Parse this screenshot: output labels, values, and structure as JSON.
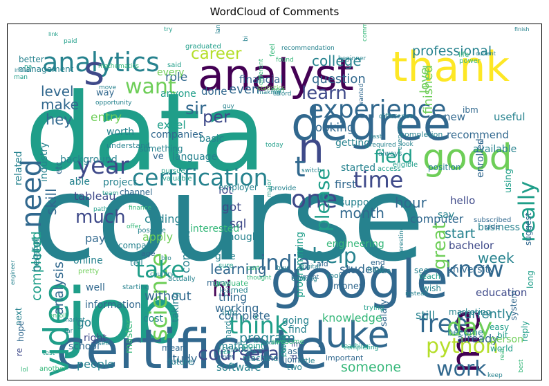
{
  "title": "WordCloud of Comments",
  "palette": [
    "#440154",
    "#482878",
    "#3e4989",
    "#31688e",
    "#26828e",
    "#1f9e89",
    "#35b779",
    "#6ece58",
    "#b5de2b",
    "#fde725"
  ],
  "words": [
    {
      "text": "course",
      "c": 4
    },
    {
      "text": "data",
      "c": 5
    },
    {
      "text": "job",
      "c": 5
    },
    {
      "text": "certificate",
      "c": 3
    },
    {
      "text": "google",
      "c": 3
    },
    {
      "text": "degree",
      "c": 3
    },
    {
      "text": "analyst",
      "c": 0
    },
    {
      "text": "thank",
      "c": 9
    },
    {
      "text": "video",
      "c": 5
    },
    {
      "text": "luke",
      "c": 3
    },
    {
      "text": "n",
      "c": 2
    },
    {
      "text": "certification",
      "c": 4
    },
    {
      "text": "experience",
      "c": 3
    },
    {
      "text": "analytics",
      "c": 4
    },
    {
      "text": "s",
      "c": 2
    },
    {
      "text": "good",
      "c": 7
    },
    {
      "text": "t",
      "c": 3
    },
    {
      "text": "want",
      "c": 7
    },
    {
      "text": "india",
      "c": 3
    },
    {
      "text": "science",
      "c": 7
    },
    {
      "text": "free",
      "c": 3
    },
    {
      "text": "me",
      "c": 0
    },
    {
      "text": "day",
      "c": 7
    },
    {
      "text": "python",
      "c": 8
    },
    {
      "text": "work",
      "c": 3
    },
    {
      "text": "help",
      "c": 4
    },
    {
      "text": "know",
      "c": 3
    },
    {
      "text": "one",
      "c": 2
    },
    {
      "text": "think",
      "c": 5
    },
    {
      "text": "take",
      "c": 5
    },
    {
      "text": "hi",
      "c": 0
    },
    {
      "text": "need",
      "c": 3
    },
    {
      "text": "year",
      "c": 2
    },
    {
      "text": "time",
      "c": 2
    },
    {
      "text": "much",
      "c": 2
    },
    {
      "text": "please",
      "c": 5
    },
    {
      "text": "career",
      "c": 8
    },
    {
      "text": "per",
      "c": 2
    },
    {
      "text": "really",
      "c": 5
    },
    {
      "text": "great",
      "c": 7
    },
    {
      "text": "coursera",
      "c": 2
    },
    {
      "text": "learn",
      "c": 2
    },
    {
      "text": "level",
      "c": 3
    },
    {
      "text": "make",
      "c": 3
    },
    {
      "text": "field",
      "c": 5
    },
    {
      "text": "week",
      "c": 4
    },
    {
      "text": "college",
      "c": 4
    },
    {
      "text": "professional",
      "c": 4
    },
    {
      "text": "learning",
      "c": 3
    },
    {
      "text": "hour",
      "c": 3
    },
    {
      "text": "month",
      "c": 3
    },
    {
      "text": "currently",
      "c": 4
    },
    {
      "text": "sir",
      "c": 3
    },
    {
      "text": "hey",
      "c": 3
    },
    {
      "text": "question",
      "c": 3
    },
    {
      "text": "even",
      "c": 3
    },
    {
      "text": "program",
      "c": 4
    },
    {
      "text": "analysis",
      "c": 3
    },
    {
      "text": "skill",
      "c": 3
    },
    {
      "text": "student",
      "c": 3
    },
    {
      "text": "someone",
      "c": 6
    },
    {
      "text": "knowledge",
      "c": 6
    },
    {
      "text": "looking",
      "c": 3
    },
    {
      "text": "sql",
      "c": 2
    },
    {
      "text": "got",
      "c": 2
    },
    {
      "text": "lot",
      "c": 2
    },
    {
      "text": "still",
      "c": 4
    },
    {
      "text": "people",
      "c": 4
    },
    {
      "text": "without",
      "c": 3
    },
    {
      "text": "working",
      "c": 3
    },
    {
      "text": "first",
      "c": 3
    },
    {
      "text": "finished",
      "c": 7
    },
    {
      "text": "love",
      "c": 7
    },
    {
      "text": "already",
      "c": 3
    },
    {
      "text": "start",
      "c": 4
    },
    {
      "text": "go",
      "c": 4
    },
    {
      "text": "pay",
      "c": 3
    },
    {
      "text": "computer",
      "c": 3
    },
    {
      "text": "cert",
      "c": 5
    },
    {
      "text": "completed",
      "c": 5
    },
    {
      "text": "thing",
      "c": 3
    },
    {
      "text": "complete",
      "c": 3
    },
    {
      "text": "tableau",
      "c": 2
    },
    {
      "text": "role",
      "c": 3
    },
    {
      "text": "available",
      "c": 4
    },
    {
      "text": "new",
      "c": 3
    },
    {
      "text": "useful",
      "c": 4
    },
    {
      "text": "recommend",
      "c": 3
    },
    {
      "text": "excel",
      "c": 5
    },
    {
      "text": "companies",
      "c": 3
    },
    {
      "text": "industry",
      "c": 4
    },
    {
      "text": "entry",
      "c": 7
    },
    {
      "text": "coding",
      "c": 4
    },
    {
      "text": "apply",
      "c": 7
    },
    {
      "text": "online",
      "c": 4
    },
    {
      "text": "content",
      "c": 4
    },
    {
      "text": "programming",
      "c": 5
    },
    {
      "text": "engineering",
      "c": 6
    },
    {
      "text": "bachelor",
      "c": 2
    },
    {
      "text": "education",
      "c": 2
    },
    {
      "text": "university",
      "c": 3
    },
    {
      "text": "business",
      "c": 4
    },
    {
      "text": "hello",
      "c": 2
    },
    {
      "text": "project",
      "c": 4
    },
    {
      "text": "language",
      "c": 4
    },
    {
      "text": "worth",
      "c": 4
    },
    {
      "text": "anyone",
      "c": 5
    },
    {
      "text": "every",
      "c": 7
    },
    {
      "text": "done",
      "c": 3
    },
    {
      "text": "financial",
      "c": 3
    },
    {
      "text": "started",
      "c": 4
    },
    {
      "text": "support",
      "c": 4
    },
    {
      "text": "getting",
      "c": 4
    },
    {
      "text": "basic",
      "c": 4
    },
    {
      "text": "say",
      "c": 4
    },
    {
      "text": "enough",
      "c": 4
    },
    {
      "text": "going",
      "c": 4
    },
    {
      "text": "find",
      "c": 4
    },
    {
      "text": "money",
      "c": 3
    },
    {
      "text": "become",
      "c": 4
    },
    {
      "text": "person",
      "c": 7
    },
    {
      "text": "school",
      "c": 3
    },
    {
      "text": "study",
      "c": 3
    },
    {
      "text": "master",
      "c": 6
    },
    {
      "text": "math",
      "c": 4
    },
    {
      "text": "software",
      "c": 4
    },
    {
      "text": "right",
      "c": 2
    },
    {
      "text": "well",
      "c": 3
    },
    {
      "text": "information",
      "c": 3
    },
    {
      "text": "cost",
      "c": 4
    },
    {
      "text": "taking",
      "c": 4
    },
    {
      "text": "give",
      "c": 4
    },
    {
      "text": "interested",
      "c": 6
    },
    {
      "text": "helpful",
      "c": 4
    },
    {
      "text": "company",
      "c": 4
    },
    {
      "text": "related",
      "c": 4
    },
    {
      "text": "better",
      "c": 4
    },
    {
      "text": "management",
      "c": 4
    },
    {
      "text": "background",
      "c": 4
    },
    {
      "text": "etc",
      "c": 3
    },
    {
      "text": "able",
      "c": 4
    },
    {
      "text": "using",
      "c": 5
    },
    {
      "text": "enrolled",
      "c": 3
    },
    {
      "text": "ve",
      "c": 3
    },
    {
      "text": "way",
      "c": 3
    },
    {
      "text": "understand",
      "c": 4
    },
    {
      "text": "something",
      "c": 4
    },
    {
      "text": "employer",
      "c": 4
    },
    {
      "text": "next",
      "c": 4
    },
    {
      "text": "future",
      "c": 4
    },
    {
      "text": "many",
      "c": 3
    },
    {
      "text": "salary",
      "c": 3
    },
    {
      "text": "ibm",
      "c": 3
    },
    {
      "text": "system",
      "c": 3
    },
    {
      "text": "marketing",
      "c": 4
    },
    {
      "text": "mean",
      "c": 3
    },
    {
      "text": "tell",
      "c": 4
    },
    {
      "text": "position",
      "c": 4
    },
    {
      "text": "channel",
      "c": 3
    },
    {
      "text": "join",
      "c": 3
    },
    {
      "text": "two",
      "c": 4
    },
    {
      "text": "ask",
      "c": 3
    },
    {
      "text": "hope",
      "c": 3
    },
    {
      "text": "im",
      "c": 2
    },
    {
      "text": "d",
      "c": 2
    },
    {
      "text": "re",
      "c": 2
    },
    {
      "text": "tool",
      "c": 4
    },
    {
      "text": "end",
      "c": 3
    },
    {
      "text": "aid",
      "c": 3
    },
    {
      "text": "idea",
      "c": 4
    },
    {
      "text": "kind",
      "c": 4
    },
    {
      "text": "long",
      "c": 5
    },
    {
      "text": "suggest",
      "c": 3
    },
    {
      "text": "reply",
      "c": 5
    },
    {
      "text": "bit",
      "c": 5
    },
    {
      "text": "easy",
      "c": 5
    },
    {
      "text": "world",
      "c": 5
    },
    {
      "text": "trying",
      "c": 5
    },
    {
      "text": "teach",
      "c": 5
    },
    {
      "text": "see",
      "c": 4
    },
    {
      "text": "wish",
      "c": 4
    },
    {
      "text": "graduate",
      "c": 6
    },
    {
      "text": "learned",
      "c": 4
    },
    {
      "text": "info",
      "c": 4
    },
    {
      "text": "scientist",
      "c": 4
    },
    {
      "text": "machine",
      "c": 4
    },
    {
      "text": "point",
      "c": 5
    },
    {
      "text": "come",
      "c": 5
    },
    {
      "text": "use",
      "c": 4
    },
    {
      "text": "important",
      "c": 3
    },
    {
      "text": "little",
      "c": 4
    },
    {
      "text": "hard",
      "c": 4
    },
    {
      "text": "sure",
      "c": 5
    },
    {
      "text": "starting",
      "c": 4
    },
    {
      "text": "pretty",
      "c": 7
    },
    {
      "text": "age",
      "c": 3
    },
    {
      "text": "actually",
      "c": 4
    },
    {
      "text": "possible",
      "c": 4
    },
    {
      "text": "offer",
      "c": 6
    },
    {
      "text": "country",
      "c": 4
    },
    {
      "text": "finance",
      "c": 6
    },
    {
      "text": "subscribed",
      "c": 3
    },
    {
      "text": "side",
      "c": 3
    },
    {
      "text": "payment",
      "c": 3
    },
    {
      "text": "thinking",
      "c": 4
    },
    {
      "text": "digital",
      "c": 4
    },
    {
      "text": "buy",
      "c": 4
    },
    {
      "text": "part",
      "c": 6
    },
    {
      "text": "thought",
      "c": 6
    },
    {
      "text": "access",
      "c": 5
    },
    {
      "text": "always",
      "c": 4
    },
    {
      "text": "everyone",
      "c": 4
    },
    {
      "text": "eligible",
      "c": 5
    },
    {
      "text": "switch",
      "c": 4
    },
    {
      "text": "pursue",
      "c": 5
    },
    {
      "text": "valuable",
      "c": 5
    },
    {
      "text": "team",
      "c": 5
    },
    {
      "text": "path",
      "c": 5
    },
    {
      "text": "major",
      "c": 5
    },
    {
      "text": "provide",
      "c": 4
    },
    {
      "text": "today",
      "c": 5
    },
    {
      "text": "completion",
      "c": 4
    },
    {
      "text": "look",
      "c": 4
    },
    {
      "text": "last",
      "c": 4
    },
    {
      "text": "required",
      "c": 4
    },
    {
      "text": "difference",
      "c": 4
    },
    {
      "text": "hr",
      "c": 3
    },
    {
      "text": "life",
      "c": 6
    },
    {
      "text": "power",
      "c": 6
    },
    {
      "text": "wanted",
      "c": 3
    },
    {
      "text": "comment",
      "c": 6
    },
    {
      "text": "current",
      "c": 4
    },
    {
      "text": "finish",
      "c": 4
    },
    {
      "text": "beginner",
      "c": 4
    },
    {
      "text": "feel",
      "c": 6
    },
    {
      "text": "recommendation",
      "c": 4
    },
    {
      "text": "graduated",
      "c": 5
    },
    {
      "text": "said",
      "c": 5
    },
    {
      "text": "paid",
      "c": 5
    },
    {
      "text": "mathematics",
      "c": 6
    },
    {
      "text": "na",
      "c": 5
    },
    {
      "text": "man",
      "c": 5
    },
    {
      "text": "indian",
      "c": 4
    },
    {
      "text": "link",
      "c": 5
    },
    {
      "text": "try",
      "c": 5
    },
    {
      "text": "land",
      "c": 4
    },
    {
      "text": "move",
      "c": 4
    },
    {
      "text": "opportunity",
      "c": 4
    },
    {
      "text": "statistics",
      "c": 7
    },
    {
      "text": "afford",
      "c": 4
    },
    {
      "text": "non",
      "c": 5
    },
    {
      "text": "making",
      "c": 4
    },
    {
      "text": "guy",
      "c": 4
    },
    {
      "text": "bi",
      "c": 4
    },
    {
      "text": "different",
      "c": 6
    },
    {
      "text": "found",
      "c": 6
    },
    {
      "text": "enroll",
      "c": 6
    },
    {
      "text": "engineer",
      "c": 4
    },
    {
      "text": "market",
      "c": 4
    },
    {
      "text": "far",
      "c": 4
    },
    {
      "text": "test",
      "c": 5
    },
    {
      "text": "lol",
      "c": 6
    },
    {
      "text": "another",
      "c": 6
    },
    {
      "text": "self",
      "c": 4
    },
    {
      "text": "exam",
      "c": 4
    },
    {
      "text": "awesome",
      "c": 6
    },
    {
      "text": "teaching",
      "c": 5
    },
    {
      "text": "completing",
      "c": 5
    },
    {
      "text": "instead",
      "c": 4
    },
    {
      "text": "interesting",
      "c": 4
    },
    {
      "text": "keep",
      "c": 4
    },
    {
      "text": "best",
      "c": 6
    },
    {
      "text": "real",
      "c": 6
    },
    {
      "text": "never",
      "c": 3
    },
    {
      "text": "nice",
      "c": 5
    },
    {
      "text": "bro",
      "c": 4
    },
    {
      "text": "ago",
      "c": 4
    },
    {
      "text": "change",
      "c": 4
    },
    {
      "text": "back",
      "c": 4
    },
    {
      "text": "showing",
      "c": 5
    },
    {
      "text": "live",
      "c": 5
    },
    {
      "text": "plz",
      "c": 6
    },
    {
      "text": "informative",
      "c": 5
    },
    {
      "text": "ca",
      "c": 4
    },
    {
      "text": "tech",
      "c": 4
    },
    {
      "text": "ll",
      "c": 5
    }
  ]
}
